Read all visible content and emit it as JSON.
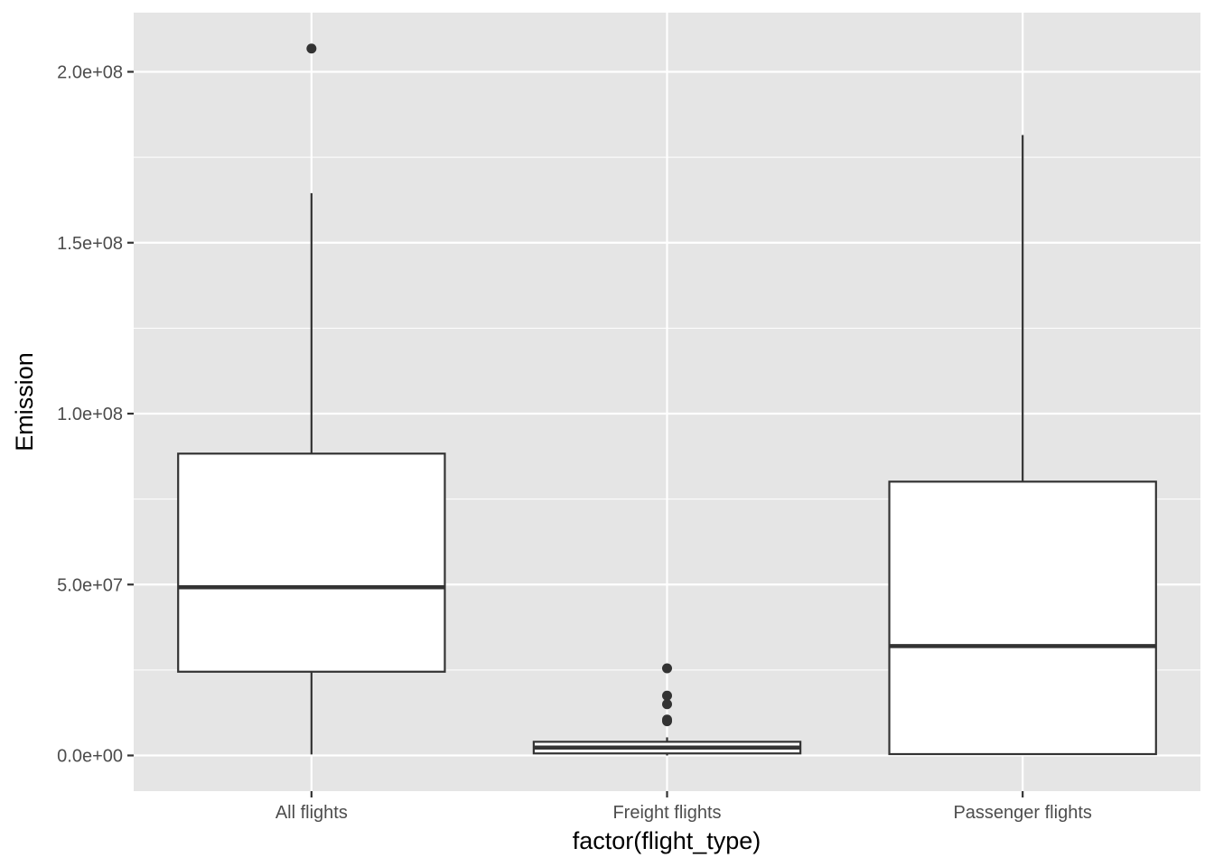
{
  "chart_data": {
    "type": "boxplot",
    "title": "",
    "xlabel": "factor(flight_type)",
    "ylabel": "Emission",
    "categories": [
      "All flights",
      "Freight flights",
      "Passenger flights"
    ],
    "ylim": [
      -10000000,
      218000000
    ],
    "y_ticks": [
      {
        "value": 0,
        "label": "0.0e+00"
      },
      {
        "value": 50000000,
        "label": "5.0e+07"
      },
      {
        "value": 100000000,
        "label": "1.0e+08"
      },
      {
        "value": 150000000,
        "label": "1.5e+08"
      },
      {
        "value": 200000000,
        "label": "2.0e+08"
      }
    ],
    "y_minor_ticks": [
      25000000,
      75000000,
      125000000,
      175000000
    ],
    "grid": true,
    "boxes": [
      {
        "category": "All flights",
        "min": 300000,
        "q1": 24500000,
        "median": 49200000,
        "q3": 88300000,
        "max": 164500000,
        "outliers": [
          206800000
        ]
      },
      {
        "category": "Freight flights",
        "min": 0,
        "q1": 600000,
        "median": 2300000,
        "q3": 4000000,
        "max": 5300000,
        "outliers": [
          25500000,
          17500000,
          15000000,
          10500000,
          10000000
        ]
      },
      {
        "category": "Passenger flights",
        "min": 300000,
        "q1": 400000,
        "median": 32000000,
        "q3": 80100000,
        "max": 181500000,
        "outliers": []
      }
    ],
    "colors": {
      "panel": "#e5e5e5",
      "grid": "#ffffff",
      "box_fill": "#ffffff",
      "box_line": "#333333"
    }
  }
}
